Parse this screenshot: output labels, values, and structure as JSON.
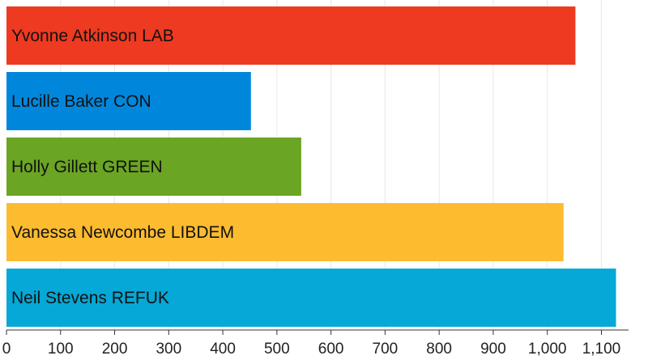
{
  "chart_data": {
    "type": "bar",
    "orientation": "horizontal",
    "categories": [
      "Yvonne Atkinson LAB",
      "Lucille Baker CON",
      "Holly Gillett GREEN",
      "Vanessa Newcombe LIBDEM",
      "Neil Stevens REFUK"
    ],
    "values": [
      1052,
      452,
      545,
      1030,
      1127
    ],
    "colors": [
      "#ee3a20",
      "#0087dc",
      "#6ba524",
      "#fdbb30",
      "#05a8d6"
    ],
    "title": "",
    "xlabel": "",
    "ylabel": "",
    "xlim": [
      0,
      1150
    ],
    "xticks": [
      0,
      100,
      200,
      300,
      400,
      500,
      600,
      700,
      800,
      900,
      1000,
      1100
    ],
    "xtick_labels": [
      "0",
      "100",
      "200",
      "300",
      "400",
      "500",
      "600",
      "700",
      "800",
      "900",
      "1,000",
      "1,100"
    ],
    "grid": true,
    "legend": "none"
  }
}
